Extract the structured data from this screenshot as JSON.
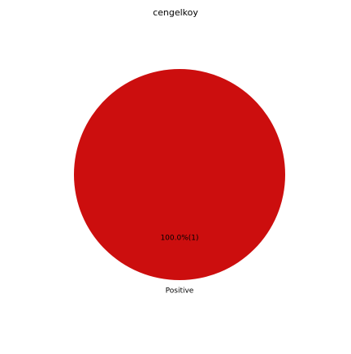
{
  "chart_data": {
    "type": "pie",
    "title": "cengelkoy",
    "slices": [
      {
        "label": "Positive",
        "value": 1,
        "percent_label": "100.0%(1)",
        "color": "#cc0e0e"
      }
    ],
    "legend": "none",
    "grid": false
  }
}
